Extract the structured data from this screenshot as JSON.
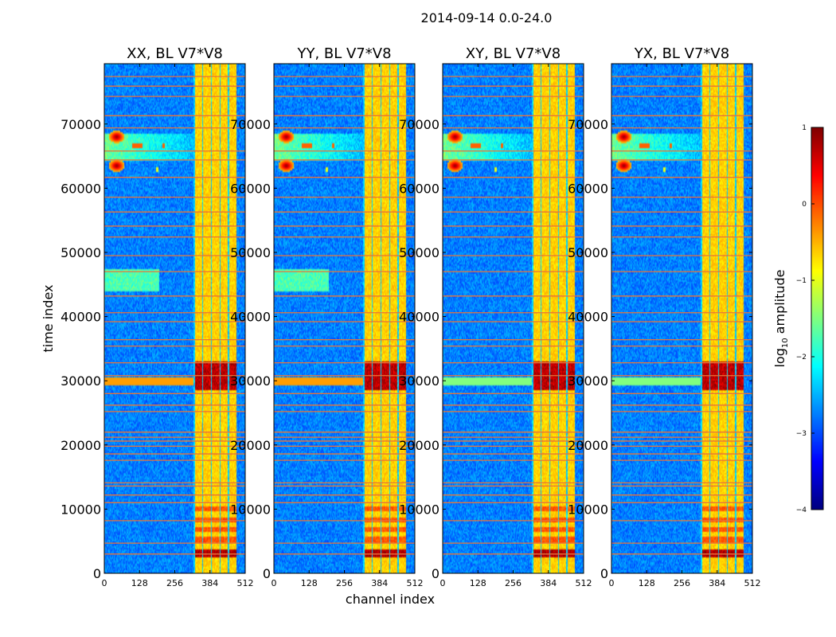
{
  "figure": {
    "suptitle": "2014-09-14 0.0-24.0",
    "xlabel": "channel index",
    "ylabel": "time index"
  },
  "chart_data": [
    {
      "type": "heatmap",
      "title": "XX, BL V7*V8",
      "x_ticks": [
        0,
        128,
        256,
        384,
        512
      ],
      "y_ticks": [
        0,
        10000,
        20000,
        30000,
        40000,
        50000,
        60000,
        70000
      ],
      "xlim": [
        0,
        512
      ],
      "ylim": [
        0,
        79400
      ],
      "rfi_channel_band": [
        325,
        480
      ],
      "strong_rfi_time": [
        28500,
        33000
      ],
      "left_burst_times": [
        63500,
        68000
      ],
      "cross_pol": false
    },
    {
      "type": "heatmap",
      "title": "YY, BL V7*V8",
      "x_ticks": [
        0,
        128,
        256,
        384,
        512
      ],
      "y_ticks": [
        0,
        10000,
        20000,
        30000,
        40000,
        50000,
        60000,
        70000
      ],
      "xlim": [
        0,
        512
      ],
      "ylim": [
        0,
        79400
      ],
      "rfi_channel_band": [
        325,
        480
      ],
      "strong_rfi_time": [
        28500,
        33000
      ],
      "left_burst_times": [
        63500,
        68000
      ],
      "cross_pol": false
    },
    {
      "type": "heatmap",
      "title": "XY, BL V7*V8",
      "x_ticks": [
        0,
        128,
        256,
        384,
        512
      ],
      "y_ticks": [
        0,
        10000,
        20000,
        30000,
        40000,
        50000,
        60000,
        70000
      ],
      "xlim": [
        0,
        512
      ],
      "ylim": [
        0,
        79400
      ],
      "rfi_channel_band": [
        325,
        480
      ],
      "strong_rfi_time": [
        28500,
        33000
      ],
      "left_burst_times": [
        63500,
        68000
      ],
      "cross_pol": true
    },
    {
      "type": "heatmap",
      "title": "YX, BL V7*V8",
      "x_ticks": [
        0,
        128,
        256,
        384,
        512
      ],
      "y_ticks": [
        0,
        10000,
        20000,
        30000,
        40000,
        50000,
        60000,
        70000
      ],
      "xlim": [
        0,
        512
      ],
      "ylim": [
        0,
        79400
      ],
      "rfi_channel_band": [
        325,
        480
      ],
      "strong_rfi_time": [
        28500,
        33000
      ],
      "left_burst_times": [
        63500,
        68000
      ],
      "cross_pol": true
    }
  ],
  "colorbar": {
    "label_prefix": "log",
    "label_sub": "10",
    "label_suffix": " amplitude",
    "range": [
      -4,
      1
    ],
    "ticks": [
      {
        "value": 1,
        "label": "1"
      },
      {
        "value": 0,
        "label": "0"
      },
      {
        "value": -1,
        "label": "−1"
      },
      {
        "value": -2,
        "label": "−2"
      },
      {
        "value": -3,
        "label": "−3"
      },
      {
        "value": -4,
        "label": "−4"
      }
    ],
    "colormap": "jet"
  },
  "flagged_time_rows": [
    3000,
    4700,
    8200,
    11000,
    12200,
    13600,
    14100,
    17600,
    18600,
    19800,
    20600,
    21200,
    22000,
    25200,
    26200,
    28000,
    30800,
    32800,
    35400,
    36400,
    39200,
    40600,
    43200,
    47000,
    49500,
    52400,
    54100,
    56300,
    58600,
    61700,
    64400,
    65800,
    69400,
    71300,
    74300,
    75900,
    77400
  ]
}
